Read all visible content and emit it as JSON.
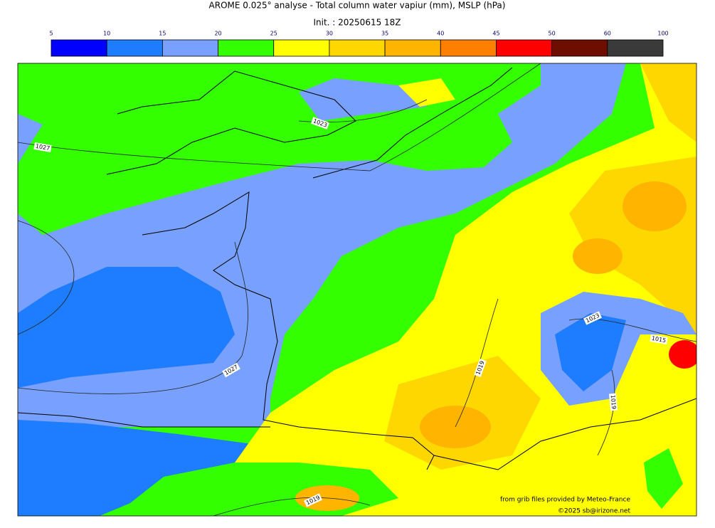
{
  "header": {
    "title": "AROME 0.025° analyse - Total column water vapiur (mm), MSLP (hPa)",
    "subtitle": "Init. : 20250615 18Z"
  },
  "colorbar": {
    "bounds": [
      5,
      10,
      15,
      20,
      25,
      30,
      35,
      40,
      45,
      50,
      60,
      100
    ],
    "colors": [
      "#0000ff",
      "#1e7cff",
      "#77a0ff",
      "#33ff00",
      "#ffff00",
      "#ffd700",
      "#ffb400",
      "#ff8000",
      "#ff0000",
      "#6e0e00",
      "#3a3a3a"
    ]
  },
  "isobar_labels": [
    "1023",
    "1027",
    "1027",
    "1023",
    "1015",
    "1019",
    "1019",
    "1019"
  ],
  "footer": {
    "source": "from grib files provided by Meteo-France",
    "copyright": "©2025 sb@irizone.net"
  }
}
